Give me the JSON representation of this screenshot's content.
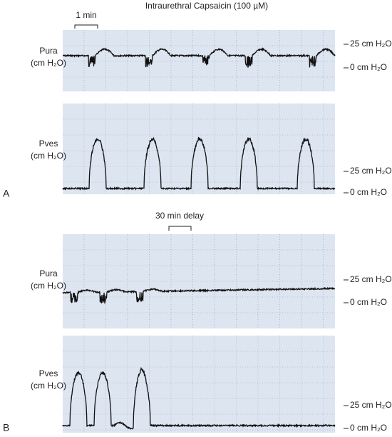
{
  "title": "Intraurethral Capsaicin (100 µM)",
  "panels": [
    {
      "label": "A",
      "scale_bar": "1 min",
      "traces": [
        {
          "name": "Pura",
          "unit": "(cm H₂O)",
          "ticks": [
            "25 cm H₂O",
            "0 cm H₂O"
          ]
        },
        {
          "name": "Pves",
          "unit": "(cm H₂O)",
          "ticks": [
            "25 cm H₂O",
            "0 cm H₂O"
          ]
        }
      ]
    },
    {
      "label": "B",
      "scale_bar": "30 min delay",
      "traces": [
        {
          "name": "Pura",
          "unit": "(cm H₂O)",
          "ticks": [
            "25 cm H₂O",
            "0 cm H₂O"
          ]
        },
        {
          "name": "Pves",
          "unit": "(cm H₂O)",
          "ticks": [
            "25 cm H₂O",
            "0 cm H₂O"
          ]
        }
      ]
    }
  ]
}
